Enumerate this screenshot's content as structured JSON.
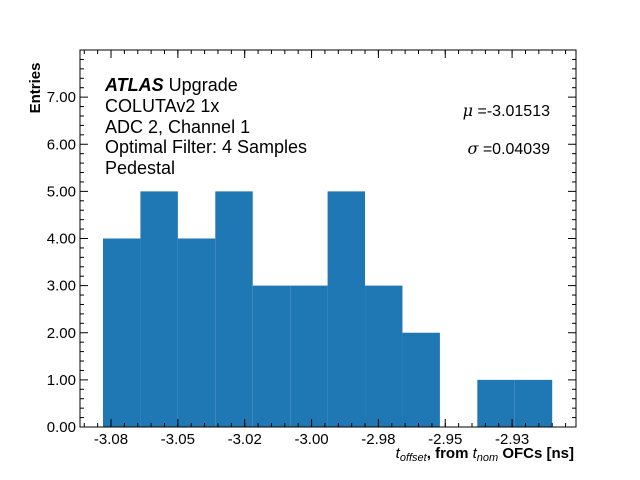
{
  "chart_data": {
    "type": "bar",
    "histogram": true,
    "bin_edges": [
      -3.078,
      -3.064,
      -3.05,
      -3.036,
      -3.022,
      -3.008,
      -2.994,
      -2.98,
      -2.966,
      -2.952,
      -2.938,
      -2.924,
      -2.91
    ],
    "values": [
      4,
      5,
      4,
      5,
      3,
      3,
      5,
      3,
      2,
      0,
      1,
      1
    ],
    "bar_color": "#1f77b4",
    "xlim": [
      -3.0866,
      -2.9011
    ],
    "ylim": [
      0,
      8
    ],
    "xticks": [
      -3.075,
      -3.05,
      -3.025,
      -3.0,
      -2.975,
      -2.95,
      -2.925
    ],
    "xtick_labels": [
      "-3.08",
      "-3.05",
      "-3.02",
      "-3.00",
      "-2.98",
      "-2.95",
      "-2.93"
    ],
    "yticks": [
      0,
      1,
      2,
      3,
      4,
      5,
      6,
      7
    ],
    "ytick_labels": [
      "0.00",
      "1.00",
      "2.00",
      "3.00",
      "4.00",
      "5.00",
      "6.00",
      "7.00"
    ],
    "xlabel": {
      "t1": "t",
      "sub1": "offset",
      "mid": ", from ",
      "t2": "t",
      "sub2": "nom",
      "end": " OFCs [ns]"
    },
    "ylabel": "Entries",
    "grid": false,
    "annotations": {
      "atlas": "ATLAS",
      "atlas_suffix": " Upgrade",
      "lines": [
        "COLUTAv2 1x",
        "ADC 2, Channel 1",
        "Optimal Filter: 4 Samples",
        "Pedestal"
      ],
      "mu_symbol": "μ",
      "mu_value": " =-3.01513",
      "sigma_symbol": "σ",
      "sigma_value": " =0.04039"
    }
  }
}
